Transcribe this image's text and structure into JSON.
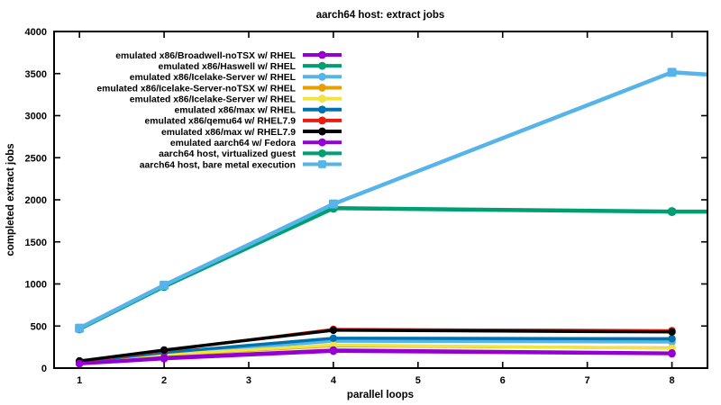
{
  "chart_data": {
    "type": "line",
    "title": "aarch64 host: extract jobs",
    "xlabel": "parallel loops",
    "ylabel": "completed extract jobs",
    "x": [
      1,
      2,
      4,
      8
    ],
    "xlim": [
      0.7,
      8.42
    ],
    "ylim": [
      0,
      4000
    ],
    "xticks": [
      1,
      2,
      3,
      4,
      5,
      6,
      7,
      8
    ],
    "yticks": [
      0,
      500,
      1000,
      1500,
      2000,
      2500,
      3000,
      3500,
      4000
    ],
    "grid": false,
    "legend_position": "inside top-left",
    "axis_color": "#000000",
    "background_color": "#ffffff",
    "series": [
      {
        "name": "emulated x86/Broadwell-noTSX w/ RHEL",
        "color": "#9400d3",
        "marker": "circle",
        "values": [
          50,
          110,
          200,
          170
        ]
      },
      {
        "name": "emulated x86/Haswell w/ RHEL",
        "color": "#009e73",
        "marker": "circle",
        "values": [
          70,
          175,
          345,
          340
        ]
      },
      {
        "name": "emulated x86/Icelake-Server w/ RHEL",
        "color": "#56b4e9",
        "marker": "circle",
        "values": [
          70,
          170,
          320,
          310
        ]
      },
      {
        "name": "emulated x86/Icelake-Server-noTSX w/ RHEL",
        "color": "#e69f00",
        "marker": "circle",
        "values": [
          60,
          155,
          265,
          240
        ]
      },
      {
        "name": "emulated x86/Icelake-Server w/ RHEL",
        "color": "#f0e442",
        "marker": "circle",
        "values": [
          65,
          160,
          275,
          235
        ]
      },
      {
        "name": "emulated x86/max w/ RHEL",
        "color": "#0072b2",
        "marker": "circle",
        "values": [
          75,
          185,
          355,
          350
        ]
      },
      {
        "name": "emulated x86/qemu64 w/ RHEL7.9",
        "color": "#e51e10",
        "marker": "circle",
        "values": [
          80,
          210,
          460,
          445
        ]
      },
      {
        "name": "emulated x86/max w/ RHEL7.9",
        "color": "#000000",
        "marker": "circle",
        "values": [
          85,
          215,
          450,
          430
        ]
      },
      {
        "name": "emulated aarch64 w/ Fedora",
        "color": "#9400d3",
        "marker": "circle",
        "values": [
          55,
          125,
          215,
          180
        ]
      },
      {
        "name": "aarch64 host, virtualized guest",
        "color": "#009e73",
        "marker": "circle",
        "values": [
          465,
          970,
          1900,
          1860
        ],
        "continues_to_border_at": 1860
      },
      {
        "name": "aarch64 host, bare metal execution",
        "color": "#56b4e9",
        "marker": "square",
        "values": [
          475,
          985,
          1950,
          3515
        ],
        "continues_to_border_at": 3490
      }
    ]
  }
}
